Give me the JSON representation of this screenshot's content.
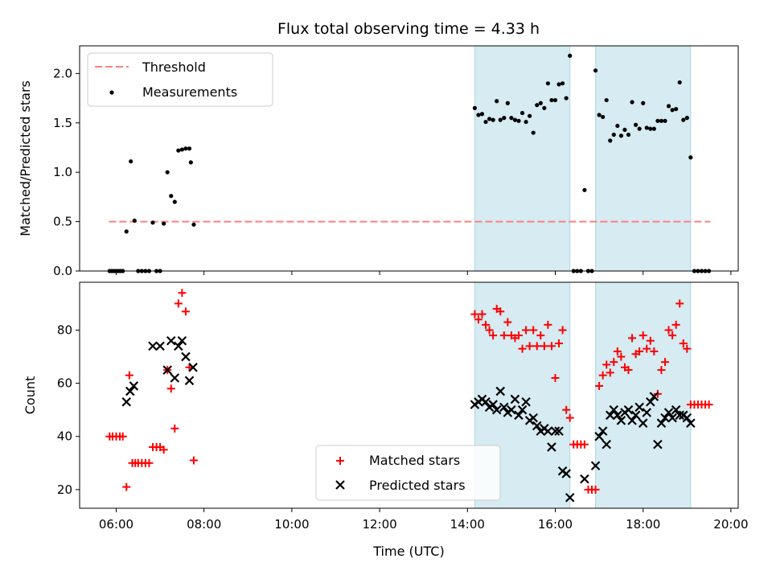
{
  "chart_data": [
    {
      "type": "scatter",
      "title": "Flux total observing time = 4.33 h",
      "ylabel": "Matched/Predicted stars",
      "xlabel": "",
      "xlim": [
        "05:10",
        "20:10"
      ],
      "ylim": [
        0,
        2.28
      ],
      "yticks": [
        "0.0",
        "0.5",
        "1.0",
        "1.5",
        "2.0"
      ],
      "xticks": [
        "06:00",
        "08:00",
        "10:00",
        "12:00",
        "14:00",
        "16:00",
        "18:00",
        "20:00"
      ],
      "legend": {
        "placement": "top-left",
        "entries": [
          "Threshold",
          "Measurements"
        ]
      },
      "threshold": {
        "name": "Threshold",
        "y": 0.5,
        "x_start": "05:50",
        "x_end": "19:32",
        "color": "#ff7f7f"
      },
      "observing_windows": [
        {
          "start": "14:10",
          "end": "16:20"
        },
        {
          "start": "16:55",
          "end": "19:05"
        }
      ],
      "series": [
        {
          "name": "Measurements",
          "color": "#000000",
          "points": [
            [
              "05:51",
              0
            ],
            [
              "05:54",
              0
            ],
            [
              "05:57",
              0
            ],
            [
              "06:00",
              0
            ],
            [
              "06:03",
              0
            ],
            [
              "06:06",
              0
            ],
            [
              "06:09",
              0
            ],
            [
              "06:14",
              0.4
            ],
            [
              "06:20",
              1.11
            ],
            [
              "06:25",
              0.51
            ],
            [
              "06:30",
              0
            ],
            [
              "06:35",
              0
            ],
            [
              "06:40",
              0
            ],
            [
              "06:45",
              0
            ],
            [
              "06:50",
              0.49
            ],
            [
              "06:55",
              0
            ],
            [
              "07:00",
              0
            ],
            [
              "07:05",
              0.48
            ],
            [
              "07:10",
              1.0
            ],
            [
              "07:15",
              0.76
            ],
            [
              "07:20",
              0.7
            ],
            [
              "07:25",
              1.22
            ],
            [
              "07:30",
              1.23
            ],
            [
              "07:35",
              1.24
            ],
            [
              "07:40",
              1.24
            ],
            [
              "07:42",
              1.1
            ],
            [
              "07:46",
              0.47
            ],
            [
              "14:10",
              1.65
            ],
            [
              "14:15",
              1.58
            ],
            [
              "14:20",
              1.59
            ],
            [
              "14:25",
              1.51
            ],
            [
              "14:30",
              1.54
            ],
            [
              "14:35",
              1.53
            ],
            [
              "14:40",
              1.72
            ],
            [
              "14:45",
              1.53
            ],
            [
              "14:50",
              1.55
            ],
            [
              "14:55",
              1.7
            ],
            [
              "15:00",
              1.55
            ],
            [
              "15:05",
              1.53
            ],
            [
              "15:10",
              1.52
            ],
            [
              "15:15",
              1.6
            ],
            [
              "15:20",
              1.51
            ],
            [
              "15:25",
              1.57
            ],
            [
              "15:30",
              1.4
            ],
            [
              "15:35",
              1.68
            ],
            [
              "15:40",
              1.7
            ],
            [
              "15:45",
              1.65
            ],
            [
              "15:50",
              1.9
            ],
            [
              "15:55",
              1.73
            ],
            [
              "16:00",
              1.73
            ],
            [
              "16:05",
              1.89
            ],
            [
              "16:10",
              1.9
            ],
            [
              "16:15",
              1.75
            ],
            [
              "16:20",
              2.18
            ],
            [
              "16:25",
              0
            ],
            [
              "16:30",
              0
            ],
            [
              "16:35",
              0
            ],
            [
              "16:40",
              0.82
            ],
            [
              "16:45",
              0
            ],
            [
              "16:50",
              0
            ],
            [
              "16:55",
              2.03
            ],
            [
              "17:00",
              1.58
            ],
            [
              "17:05",
              1.56
            ],
            [
              "17:10",
              1.73
            ],
            [
              "17:15",
              1.32
            ],
            [
              "17:20",
              1.38
            ],
            [
              "17:25",
              1.47
            ],
            [
              "17:30",
              1.37
            ],
            [
              "17:35",
              1.43
            ],
            [
              "17:40",
              1.38
            ],
            [
              "17:45",
              1.71
            ],
            [
              "17:50",
              1.48
            ],
            [
              "17:55",
              1.44
            ],
            [
              "18:00",
              1.7
            ],
            [
              "18:05",
              1.45
            ],
            [
              "18:10",
              1.44
            ],
            [
              "18:15",
              1.44
            ],
            [
              "18:20",
              1.52
            ],
            [
              "18:25",
              1.52
            ],
            [
              "18:30",
              1.52
            ],
            [
              "18:35",
              1.67
            ],
            [
              "18:40",
              1.63
            ],
            [
              "18:45",
              1.64
            ],
            [
              "18:50",
              1.91
            ],
            [
              "18:55",
              1.53
            ],
            [
              "19:00",
              1.55
            ],
            [
              "19:05",
              1.15
            ],
            [
              "19:10",
              0
            ],
            [
              "19:15",
              0
            ],
            [
              "19:20",
              0
            ],
            [
              "19:25",
              0
            ],
            [
              "19:30",
              0
            ]
          ]
        }
      ]
    },
    {
      "type": "scatter",
      "title": "",
      "ylabel": "Count",
      "xlabel": "Time (UTC)",
      "xlim": [
        "05:10",
        "20:10"
      ],
      "ylim": [
        13,
        98
      ],
      "yticks": [
        "20",
        "40",
        "60",
        "80"
      ],
      "xticks": [
        "06:00",
        "08:00",
        "10:00",
        "12:00",
        "14:00",
        "16:00",
        "18:00",
        "20:00"
      ],
      "legend": {
        "placement": "bottom-center",
        "entries": [
          "Matched stars",
          "Predicted stars"
        ]
      },
      "observing_windows": [
        {
          "start": "14:10",
          "end": "16:20"
        },
        {
          "start": "16:55",
          "end": "19:05"
        }
      ],
      "series": [
        {
          "name": "Matched stars",
          "marker": "plus",
          "color": "#ff0000",
          "points": [
            [
              "05:51",
              40
            ],
            [
              "05:55",
              40
            ],
            [
              "06:00",
              40
            ],
            [
              "06:05",
              40
            ],
            [
              "06:09",
              40
            ],
            [
              "06:14",
              21
            ],
            [
              "06:18",
              63
            ],
            [
              "06:22",
              30
            ],
            [
              "06:26",
              30
            ],
            [
              "06:30",
              30
            ],
            [
              "06:35",
              30
            ],
            [
              "06:40",
              30
            ],
            [
              "06:45",
              30
            ],
            [
              "06:50",
              36
            ],
            [
              "06:55",
              36
            ],
            [
              "07:00",
              36
            ],
            [
              "07:05",
              35
            ],
            [
              "07:10",
              65
            ],
            [
              "07:15",
              58
            ],
            [
              "07:20",
              43
            ],
            [
              "07:25",
              90
            ],
            [
              "07:30",
              94
            ],
            [
              "07:35",
              87
            ],
            [
              "07:40",
              66
            ],
            [
              "07:46",
              31
            ],
            [
              "14:10",
              86
            ],
            [
              "14:15",
              84
            ],
            [
              "14:20",
              86
            ],
            [
              "14:25",
              82
            ],
            [
              "14:30",
              80
            ],
            [
              "14:35",
              78
            ],
            [
              "14:40",
              88
            ],
            [
              "14:45",
              87
            ],
            [
              "14:50",
              78
            ],
            [
              "14:55",
              83
            ],
            [
              "15:00",
              78
            ],
            [
              "15:05",
              77
            ],
            [
              "15:10",
              78
            ],
            [
              "15:15",
              73
            ],
            [
              "15:20",
              80
            ],
            [
              "15:25",
              74
            ],
            [
              "15:30",
              80
            ],
            [
              "15:35",
              74
            ],
            [
              "15:40",
              78
            ],
            [
              "15:45",
              74
            ],
            [
              "15:50",
              82
            ],
            [
              "15:55",
              74
            ],
            [
              "16:00",
              62
            ],
            [
              "16:05",
              75
            ],
            [
              "16:10",
              80
            ],
            [
              "16:15",
              50
            ],
            [
              "16:20",
              47
            ],
            [
              "16:25",
              37
            ],
            [
              "16:30",
              37
            ],
            [
              "16:35",
              37
            ],
            [
              "16:40",
              37
            ],
            [
              "16:45",
              20
            ],
            [
              "16:50",
              20
            ],
            [
              "16:55",
              20
            ],
            [
              "17:00",
              59
            ],
            [
              "17:05",
              63
            ],
            [
              "17:10",
              67
            ],
            [
              "17:15",
              64
            ],
            [
              "17:20",
              68
            ],
            [
              "17:25",
              72
            ],
            [
              "17:30",
              70
            ],
            [
              "17:35",
              66
            ],
            [
              "17:40",
              65
            ],
            [
              "17:45",
              77
            ],
            [
              "17:50",
              71
            ],
            [
              "17:55",
              72
            ],
            [
              "18:00",
              78
            ],
            [
              "18:05",
              73
            ],
            [
              "18:10",
              76
            ],
            [
              "18:15",
              72
            ],
            [
              "18:20",
              56
            ],
            [
              "18:25",
              65
            ],
            [
              "18:30",
              68
            ],
            [
              "18:35",
              80
            ],
            [
              "18:40",
              78
            ],
            [
              "18:45",
              82
            ],
            [
              "18:50",
              90
            ],
            [
              "18:55",
              75
            ],
            [
              "19:00",
              73
            ],
            [
              "19:05",
              52
            ],
            [
              "19:10",
              52
            ],
            [
              "19:15",
              52
            ],
            [
              "19:20",
              52
            ],
            [
              "19:25",
              52
            ],
            [
              "19:30",
              52
            ]
          ]
        },
        {
          "name": "Predicted stars",
          "marker": "cross",
          "color": "#000000",
          "points": [
            [
              "06:14",
              53
            ],
            [
              "06:19",
              57
            ],
            [
              "06:24",
              59
            ],
            [
              "06:50",
              74
            ],
            [
              "07:00",
              74
            ],
            [
              "07:10",
              65
            ],
            [
              "07:15",
              76
            ],
            [
              "07:20",
              62
            ],
            [
              "07:25",
              74
            ],
            [
              "07:30",
              76
            ],
            [
              "07:35",
              70
            ],
            [
              "07:40",
              61
            ],
            [
              "07:45",
              66
            ],
            [
              "14:10",
              52
            ],
            [
              "14:15",
              53
            ],
            [
              "14:20",
              54
            ],
            [
              "14:25",
              53
            ],
            [
              "14:30",
              51
            ],
            [
              "14:35",
              52
            ],
            [
              "14:40",
              50
            ],
            [
              "14:45",
              57
            ],
            [
              "14:50",
              51
            ],
            [
              "14:55",
              49
            ],
            [
              "15:00",
              50
            ],
            [
              "15:05",
              54
            ],
            [
              "15:10",
              48
            ],
            [
              "15:15",
              50
            ],
            [
              "15:20",
              53
            ],
            [
              "15:25",
              46
            ],
            [
              "15:30",
              47
            ],
            [
              "15:35",
              44
            ],
            [
              "15:40",
              42
            ],
            [
              "15:45",
              43
            ],
            [
              "15:50",
              42
            ],
            [
              "15:55",
              36
            ],
            [
              "16:00",
              42
            ],
            [
              "16:05",
              42
            ],
            [
              "16:10",
              27
            ],
            [
              "16:15",
              26
            ],
            [
              "16:20",
              17
            ],
            [
              "16:40",
              24
            ],
            [
              "16:55",
              29
            ],
            [
              "17:00",
              40
            ],
            [
              "17:05",
              42
            ],
            [
              "17:10",
              37
            ],
            [
              "17:15",
              48
            ],
            [
              "17:20",
              50
            ],
            [
              "17:25",
              48
            ],
            [
              "17:30",
              46
            ],
            [
              "17:35",
              49
            ],
            [
              "17:40",
              50
            ],
            [
              "17:45",
              46
            ],
            [
              "17:50",
              48
            ],
            [
              "17:55",
              51
            ],
            [
              "18:00",
              45
            ],
            [
              "18:05",
              49
            ],
            [
              "18:10",
              53
            ],
            [
              "18:15",
              55
            ],
            [
              "18:20",
              37
            ],
            [
              "18:25",
              45
            ],
            [
              "18:30",
              47
            ],
            [
              "18:35",
              49
            ],
            [
              "18:40",
              47
            ],
            [
              "18:45",
              50
            ],
            [
              "18:50",
              48
            ],
            [
              "18:55",
              48
            ],
            [
              "19:00",
              47
            ],
            [
              "19:05",
              45
            ]
          ]
        }
      ]
    }
  ]
}
